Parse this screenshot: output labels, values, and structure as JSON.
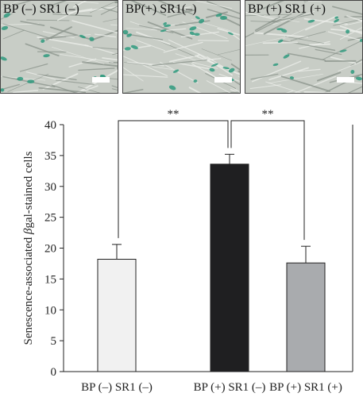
{
  "panels": [
    {
      "label": "BP (–) SR1 (–)",
      "stain_density": "medium"
    },
    {
      "label": "BP(+) SR1(–)",
      "stain_density": "high"
    },
    {
      "label": "BP (+) SR1 (+)",
      "stain_density": "medium"
    }
  ],
  "colors": {
    "cell_background": "#c8cdc6",
    "stain": "#2f9a7e",
    "bar_control": "#f1f1f1",
    "bar_bp": "#1f1f21",
    "bar_bp_sr1": "#a9abae"
  },
  "chart_data": {
    "type": "bar",
    "categories": [
      "BP (–) SR1 (–)",
      "BP (+) SR1 (–)",
      "BP (+) SR1 (+)"
    ],
    "values": [
      18.2,
      33.6,
      17.6
    ],
    "errors": [
      2.4,
      1.6,
      2.7
    ],
    "colors": [
      "#f1f1f1",
      "#1f1f21",
      "#a9abae"
    ],
    "ylabel_prefix": "Senescence-associated ",
    "ylabel_greek": "β",
    "ylabel_suffix": "gal-stained cells",
    "ylim": [
      0,
      40
    ],
    "yticks": [
      0,
      5,
      10,
      15,
      20,
      25,
      30,
      35,
      40
    ],
    "significance": [
      {
        "from": 0,
        "to": 1,
        "label": "**"
      },
      {
        "from": 1,
        "to": 2,
        "label": "**"
      }
    ],
    "grid": false
  }
}
